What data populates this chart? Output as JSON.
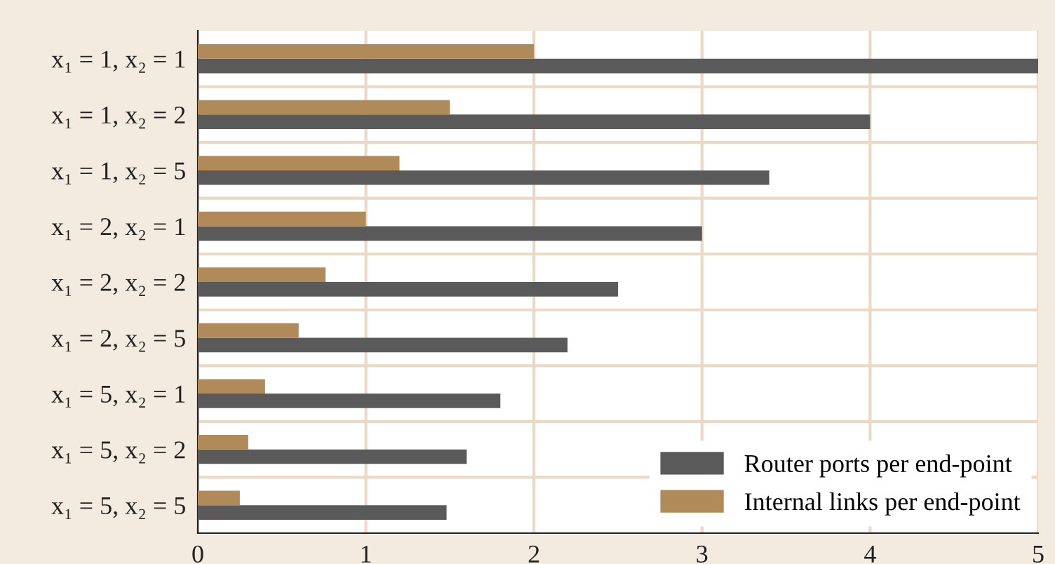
{
  "chart_data": {
    "type": "bar",
    "orientation": "horizontal",
    "categories": [
      "x₁ = 1, x₂ = 1",
      "x₁ = 1, x₂ = 2",
      "x₁ = 1, x₂ = 5",
      "x₁ = 2, x₂ = 1",
      "x₁ = 2, x₂ = 2",
      "x₁ = 2, x₂ = 5",
      "x₁ = 5, x₂ = 1",
      "x₁ = 5, x₂ = 2",
      "x₁ = 5, x₂ = 5"
    ],
    "series": [
      {
        "name": "Router ports per end-point",
        "color": "#5a5a5a",
        "values": [
          5,
          4,
          3.4,
          3,
          2.5,
          2.2,
          1.8,
          1.6,
          1.48
        ]
      },
      {
        "name": "Internal links per end-point",
        "color": "#b08a58",
        "values": [
          2,
          1.5,
          1.2,
          1.0,
          0.76,
          0.6,
          0.4,
          0.3,
          0.25
        ]
      }
    ],
    "xlim": [
      0,
      5
    ],
    "xticks": [
      0,
      1,
      2,
      3,
      4,
      5
    ],
    "grid": true,
    "legend": "bottom right"
  }
}
